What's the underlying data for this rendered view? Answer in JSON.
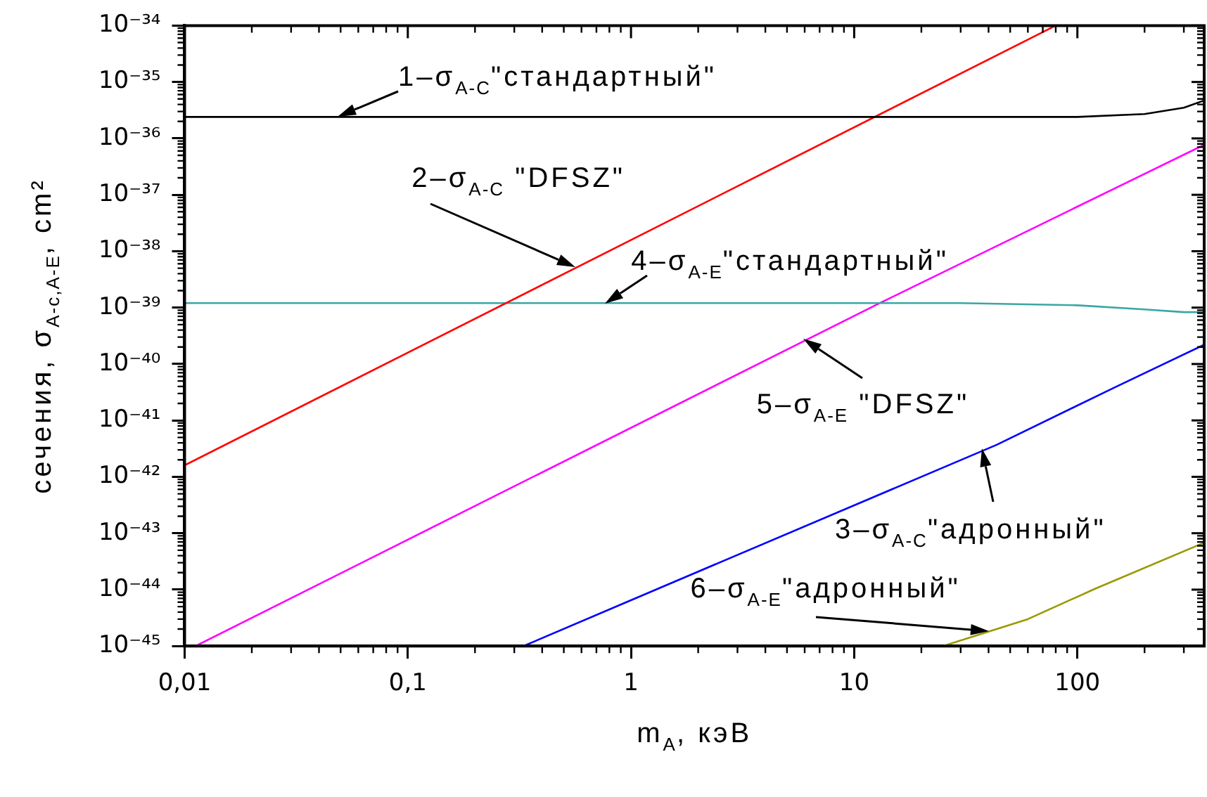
{
  "chart_data": {
    "type": "line",
    "xlabel": "m$_{A}$, кэВ",
    "ylabel": "сечения, σ$_{A-c,A-E}$, cm²",
    "log": "xy",
    "grid": false,
    "legend": false,
    "marker": "none",
    "line_style": "solid",
    "xlim": [
      0.01,
      370
    ],
    "xticks": [
      {
        "value": 0.01,
        "label": "0,01"
      },
      {
        "value": 0.1,
        "label": "0,1"
      },
      1,
      10,
      100
    ],
    "ylim": [
      1e-45,
      1e-34
    ],
    "yticks": [
      {
        "value": 1e-45,
        "label": "10⁻⁴⁵"
      },
      {
        "value": 1e-44,
        "label": "10⁻⁴⁴"
      },
      {
        "value": 1e-43,
        "label": "10⁻⁴³"
      },
      {
        "value": 1e-42,
        "label": "10⁻⁴²"
      },
      {
        "value": 1e-41,
        "label": "10⁻⁴¹"
      },
      {
        "value": 1e-40,
        "label": "10⁻⁴⁰"
      },
      {
        "value": 1e-39,
        "label": "10⁻³⁹"
      },
      {
        "value": 1e-38,
        "label": "10⁻³⁸"
      },
      {
        "value": 1e-37,
        "label": "10⁻³⁷"
      },
      {
        "value": 1e-36,
        "label": "10⁻³⁶"
      },
      {
        "value": 1e-35,
        "label": "10⁻³⁵"
      },
      {
        "value": 1e-34,
        "label": "10⁻³⁴"
      }
    ],
    "series": [
      {
        "color": "#000000",
        "x": [
          0.01,
          1,
          100,
          200,
          300,
          370
        ],
        "values": [
          2.4e-36,
          2.4e-36,
          2.4e-36,
          2.7e-36,
          3.5e-36,
          4.7e-36
        ]
      },
      {
        "color": "#ff0000",
        "x": [
          0.01,
          80
        ],
        "values": [
          1.6e-42,
          1e-34
        ]
      },
      {
        "color": "#0000ff",
        "x": [
          0.33,
          1,
          43.5,
          150,
          370
        ],
        "values": [
          1e-45,
          6.5e-45,
          3.7e-42,
          4e-41,
          2.2e-40
        ]
      },
      {
        "color": "#3aa6a6",
        "x": [
          0.01,
          1,
          30,
          100,
          200,
          300,
          370
        ],
        "values": [
          1.2e-39,
          1.2e-39,
          1.2e-39,
          1.1e-39,
          9.3e-40,
          8.3e-40,
          8.3e-40
        ]
      },
      {
        "color": "#ff00ff",
        "x": [
          0.0112,
          13,
          370
        ],
        "values": [
          1e-45,
          1.2e-39,
          7.7e-37
        ]
      },
      {
        "color": "#999900",
        "x": [
          25,
          60,
          121,
          370
        ],
        "values": [
          1e-45,
          3e-45,
          1.05e-44,
          6.8e-44
        ]
      }
    ],
    "annotations": [
      {
        "text": "1–σ$_{A-C}$\"стандартный\"",
        "x": 0.0485,
        "y": 2.4e-36
      },
      {
        "text": "2–σ$_{A-C}$ \"DFSZ\"",
        "x": 0.56,
        "y": 5.1e-39
      },
      {
        "text": "4–σ$_{A-E}$\"стандартный\"",
        "x": 0.76,
        "y": 1.2e-39
      },
      {
        "text": "5–σ$_{A-E}$ \"DFSZ\"",
        "x": 5.9,
        "y": 2.8e-40
      },
      {
        "text": "3–σ$_{A-C}$\"адронный\"",
        "x": 37.6,
        "y": 3.2e-42
      },
      {
        "text": "6–σ$_{A-E}$\"адронный\"",
        "x": 40,
        "y": 1.8e-45
      }
    ]
  }
}
